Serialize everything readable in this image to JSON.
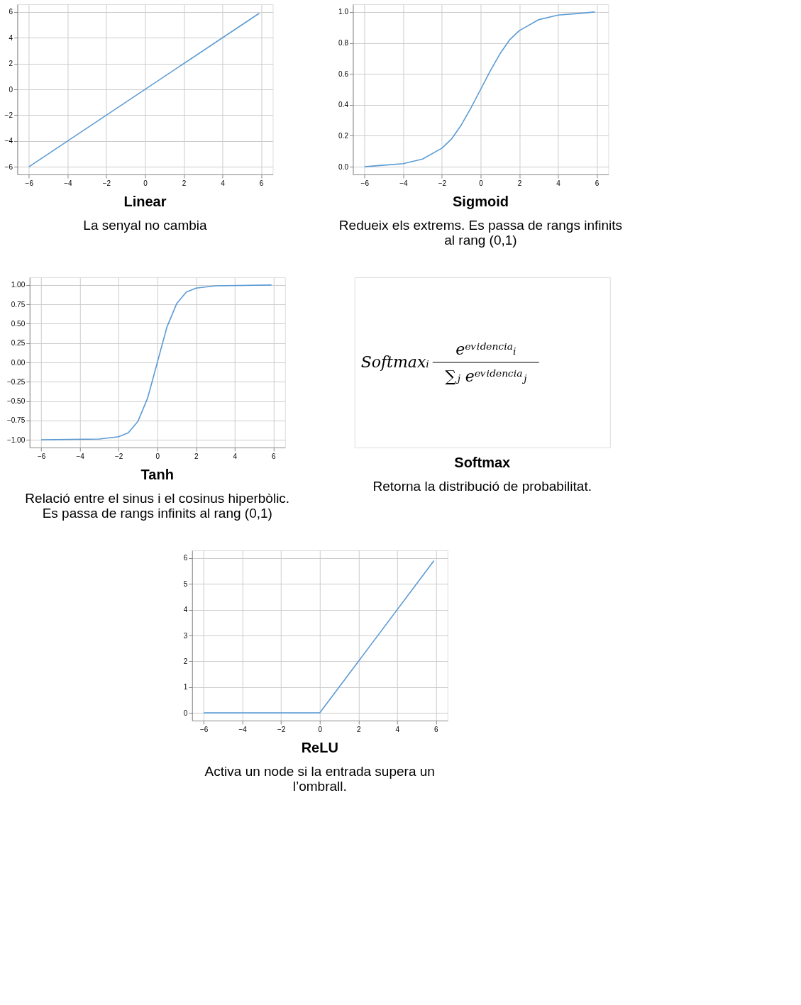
{
  "chart_data": [
    {
      "type": "line",
      "title": "Linear",
      "subtitle": "La senyal no cambia",
      "x": [
        -6,
        5.9
      ],
      "series": [
        {
          "color": "#5b9bd5",
          "values": [
            -6,
            5.9
          ]
        }
      ],
      "xlim": [
        -6.6,
        6.6
      ],
      "ylim": [
        -6.6,
        6.6
      ],
      "xticks": [
        {
          "value": -6,
          "label": "−6"
        },
        {
          "value": -4,
          "label": "−4"
        },
        {
          "value": -2,
          "label": "−2"
        },
        0,
        2,
        4,
        6
      ],
      "yticks": [
        {
          "value": -6,
          "label": "−6"
        },
        {
          "value": -4,
          "label": "−4"
        },
        {
          "value": -2,
          "label": "−2"
        },
        0,
        2,
        4,
        6
      ],
      "grid": true
    },
    {
      "type": "line",
      "title": "Sigmoid",
      "subtitle": "Redueix els extrems. Es passa de rangs infinits al rang (0,1)",
      "x": [
        -6,
        -5,
        -4,
        -3,
        -2,
        -1.5,
        -1,
        -0.5,
        0,
        0.5,
        1,
        1.5,
        2,
        3,
        4,
        5,
        5.9
      ],
      "series": [
        {
          "color": "#5b9bd5",
          "values": [
            0.0,
            0.01,
            0.02,
            0.05,
            0.12,
            0.18,
            0.27,
            0.38,
            0.5,
            0.62,
            0.73,
            0.82,
            0.88,
            0.95,
            0.98,
            0.99,
            1.0
          ]
        }
      ],
      "xlim": [
        -6.6,
        6.6
      ],
      "ylim": [
        -0.05,
        1.05
      ],
      "xticks": [
        {
          "value": -6,
          "label": "−6"
        },
        {
          "value": -4,
          "label": "−4"
        },
        {
          "value": -2,
          "label": "−2"
        },
        0,
        2,
        4,
        6
      ],
      "yticks": [
        {
          "value": 0,
          "label": "0.0"
        },
        0.2,
        0.4,
        0.6,
        0.8,
        {
          "value": 1,
          "label": "1.0"
        }
      ],
      "grid": true
    },
    {
      "type": "line",
      "title": "Tanh",
      "subtitle": "Relació entre el sinus i el cosinus hiperbòlic. Es passa de rangs infinits al rang (0,1)",
      "x": [
        -6,
        -3,
        -2,
        -1.5,
        -1,
        -0.5,
        0,
        0.5,
        1,
        1.5,
        2,
        3,
        5.9
      ],
      "series": [
        {
          "color": "#5b9bd5",
          "values": [
            -1.0,
            -0.99,
            -0.96,
            -0.91,
            -0.76,
            -0.46,
            0.0,
            0.46,
            0.76,
            0.91,
            0.96,
            0.99,
            1.0
          ]
        }
      ],
      "xlim": [
        -6.6,
        6.6
      ],
      "ylim": [
        -1.1,
        1.1
      ],
      "xticks": [
        {
          "value": -6,
          "label": "−6"
        },
        {
          "value": -4,
          "label": "−4"
        },
        {
          "value": -2,
          "label": "−2"
        },
        0,
        2,
        4,
        6
      ],
      "yticks": [
        {
          "value": -1,
          "label": "−1.00"
        },
        {
          "value": -0.75,
          "label": "−0.75"
        },
        {
          "value": -0.5,
          "label": "−0.50"
        },
        {
          "value": -0.25,
          "label": "−0.25"
        },
        {
          "value": 0,
          "label": "0.00"
        },
        {
          "value": 0.25,
          "label": "0.25"
        },
        {
          "value": 0.5,
          "label": "0.50"
        },
        {
          "value": 0.75,
          "label": "0.75"
        },
        {
          "value": 1,
          "label": "1.00"
        }
      ],
      "grid": true
    },
    {
      "type": "other",
      "title": "Softmax",
      "subtitle": "Retorna la distribució de probabilitat.",
      "annotations": [
        "Softmaxᵢ",
        "eᵉᵛⁱᵈᵉⁿᶜⁱᵃᵢ",
        "∑ⱼ eᵉᵛⁱᵈᵉⁿᶜⁱᵃⱼ"
      ]
    },
    {
      "type": "line",
      "title": "ReLU",
      "subtitle": "Activa un node si la entrada supera un l’ombrall.",
      "x": [
        -6,
        0,
        5.9
      ],
      "series": [
        {
          "color": "#5b9bd5",
          "values": [
            0,
            0,
            5.9
          ]
        }
      ],
      "xlim": [
        -6.6,
        6.6
      ],
      "ylim": [
        -0.3,
        6.3
      ],
      "xticks": [
        {
          "value": -6,
          "label": "−6"
        },
        {
          "value": -4,
          "label": "−4"
        },
        {
          "value": -2,
          "label": "−2"
        },
        0,
        2,
        4,
        6
      ],
      "yticks": [
        0,
        1,
        2,
        3,
        4,
        5,
        6
      ],
      "grid": true
    }
  ]
}
